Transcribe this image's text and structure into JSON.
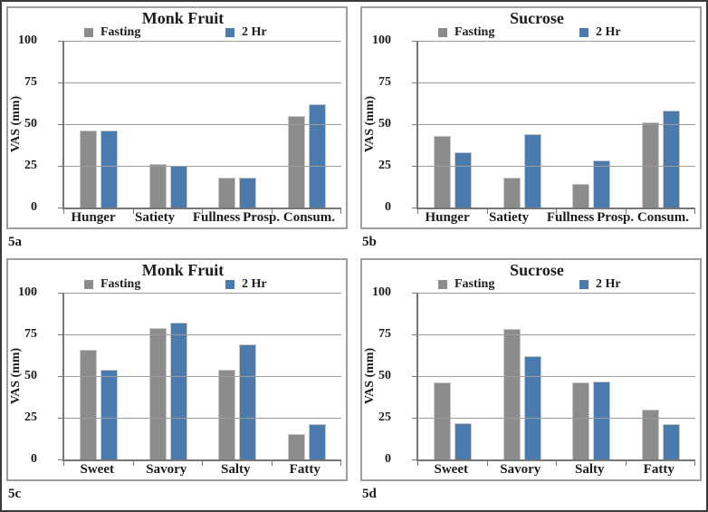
{
  "figure": {
    "series_colors": {
      "fasting": "#8C8C8C",
      "two_hr": "#4A7BAC"
    }
  },
  "chart_data": [
    {
      "type": "bar",
      "panel_label": "5a",
      "title": "Monk Fruit",
      "ylabel": "VAS (mm)",
      "ylim": [
        0,
        100
      ],
      "yticks": [
        0,
        25,
        50,
        75,
        100
      ],
      "grid": true,
      "legend_position": "top",
      "categories": [
        "Hunger",
        "Satiety",
        "Fullness",
        "Prosp. Consum."
      ],
      "series": [
        {
          "name": "Fasting",
          "color": "#8C8C8C",
          "values": [
            46,
            26,
            18,
            55
          ]
        },
        {
          "name": "2 Hr",
          "color": "#4A7BAC",
          "values": [
            46,
            25,
            18,
            62
          ]
        }
      ]
    },
    {
      "type": "bar",
      "panel_label": "5b",
      "title": "Sucrose",
      "ylabel": "VAS (mm)",
      "ylim": [
        0,
        100
      ],
      "yticks": [
        0,
        25,
        50,
        75,
        100
      ],
      "grid": true,
      "legend_position": "top",
      "categories": [
        "Hunger",
        "Satiety",
        "Fullness",
        "Prosp. Consum."
      ],
      "series": [
        {
          "name": "Fasting",
          "color": "#8C8C8C",
          "values": [
            43,
            18,
            14,
            51
          ]
        },
        {
          "name": "2 Hr",
          "color": "#4A7BAC",
          "values": [
            33,
            44,
            28,
            58
          ]
        }
      ]
    },
    {
      "type": "bar",
      "panel_label": "5c",
      "title": "Monk Fruit",
      "ylabel": "VAS (mm)",
      "ylim": [
        0,
        100
      ],
      "yticks": [
        0,
        25,
        50,
        75,
        100
      ],
      "grid": true,
      "legend_position": "top",
      "categories": [
        "Sweet",
        "Savory",
        "Salty",
        "Fatty"
      ],
      "series": [
        {
          "name": "Fasting",
          "color": "#8C8C8C",
          "values": [
            66,
            79,
            54,
            15
          ]
        },
        {
          "name": "2 Hr",
          "color": "#4A7BAC",
          "values": [
            54,
            82,
            69,
            21
          ]
        }
      ]
    },
    {
      "type": "bar",
      "panel_label": "5d",
      "title": "Sucrose",
      "ylabel": "VAS (mm)",
      "ylim": [
        0,
        100
      ],
      "yticks": [
        0,
        25,
        50,
        75,
        100
      ],
      "grid": true,
      "legend_position": "top",
      "categories": [
        "Sweet",
        "Savory",
        "Salty",
        "Fatty"
      ],
      "series": [
        {
          "name": "Fasting",
          "color": "#8C8C8C",
          "values": [
            46,
            78,
            46,
            30
          ]
        },
        {
          "name": "2 Hr",
          "color": "#4A7BAC",
          "values": [
            22,
            62,
            47,
            21
          ]
        }
      ]
    }
  ]
}
